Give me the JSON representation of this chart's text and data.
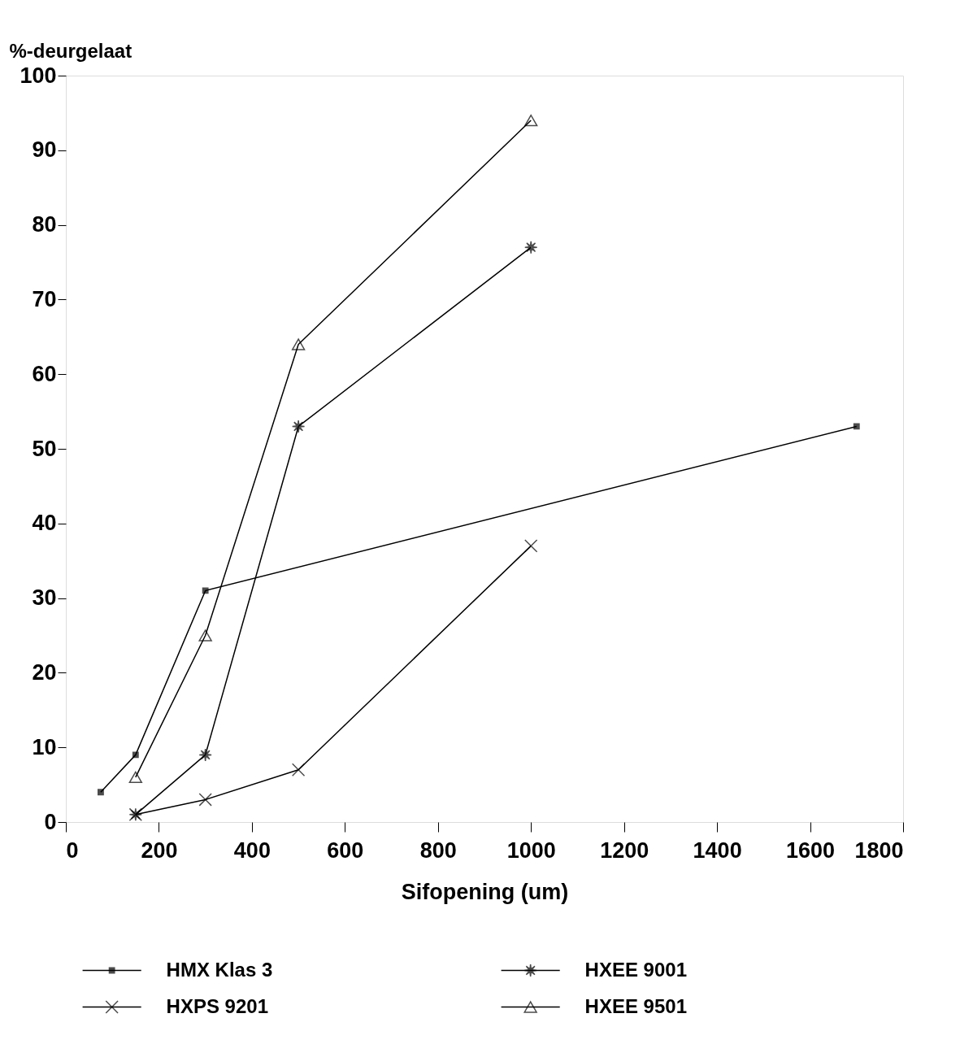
{
  "chart_data": {
    "type": "line",
    "xlabel": "Sifopening (um)",
    "ylabel": "%-deurgelaat",
    "xlim": [
      0,
      1800
    ],
    "xticks": [
      0,
      200,
      400,
      600,
      800,
      1000,
      1200,
      1400,
      1600,
      1800
    ],
    "ylim": [
      0,
      100
    ],
    "yticks": [
      0,
      10,
      20,
      30,
      40,
      50,
      60,
      70,
      80,
      90,
      100
    ],
    "grid": false,
    "legend": "bottom",
    "series": [
      {
        "name": "HMX Klas 3",
        "color": "#000000",
        "marker": "square",
        "x": [
          75,
          150,
          300,
          1700
        ],
        "values": [
          4,
          9,
          31,
          53
        ]
      },
      {
        "name": "HXPS 9201",
        "color": "#000000",
        "marker": "cross",
        "x": [
          150,
          300,
          500,
          1000
        ],
        "values": [
          1,
          3,
          7,
          37
        ]
      },
      {
        "name": "HXEE 9001",
        "color": "#000000",
        "marker": "star",
        "x": [
          150,
          300,
          500,
          1000
        ],
        "values": [
          1,
          9,
          53,
          77
        ]
      },
      {
        "name": "HXEE 9501",
        "color": "#000000",
        "marker": "triangle",
        "x": [
          150,
          300,
          500,
          1000
        ],
        "values": [
          6,
          25,
          64,
          94
        ]
      }
    ]
  }
}
